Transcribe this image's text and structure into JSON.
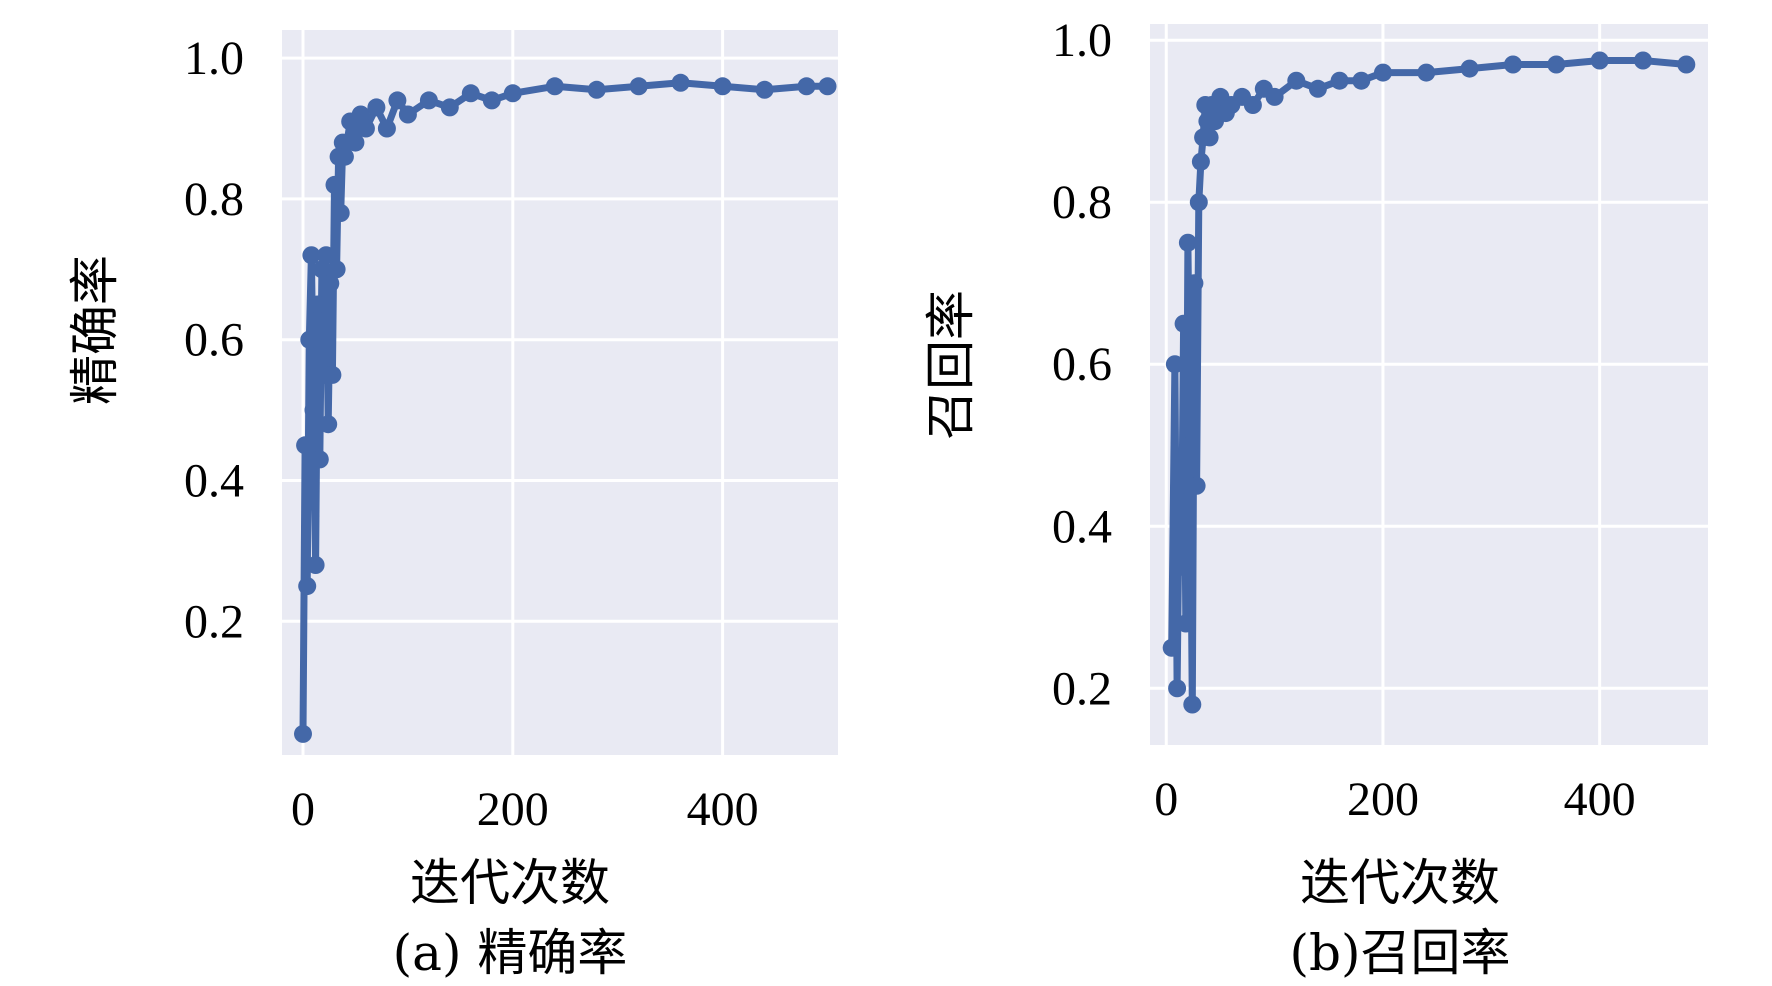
{
  "chart_data": [
    {
      "type": "line",
      "xlabel": "迭代次数",
      "ylabel": "精确率",
      "caption": "(a) 精确率",
      "xlim": [
        -20,
        510
      ],
      "ylim": [
        0.01,
        1.04
      ],
      "xticks": [
        "0",
        "200",
        "400"
      ],
      "yticks": [
        "0.2",
        "0.4",
        "0.6",
        "0.8",
        "1.0"
      ],
      "grid": true,
      "series": [
        {
          "color": "#4468a8",
          "x": [
            0,
            2,
            4,
            6,
            8,
            10,
            12,
            14,
            16,
            18,
            20,
            22,
            24,
            26,
            28,
            30,
            32,
            34,
            36,
            38,
            40,
            45,
            50,
            55,
            60,
            70,
            80,
            90,
            100,
            120,
            140,
            160,
            180,
            200,
            240,
            280,
            320,
            360,
            400,
            440,
            480,
            500
          ],
          "y": [
            0.04,
            0.45,
            0.25,
            0.6,
            0.72,
            0.5,
            0.28,
            0.65,
            0.43,
            0.7,
            0.55,
            0.72,
            0.48,
            0.68,
            0.55,
            0.82,
            0.7,
            0.86,
            0.78,
            0.88,
            0.86,
            0.91,
            0.88,
            0.92,
            0.9,
            0.93,
            0.9,
            0.94,
            0.92,
            0.94,
            0.93,
            0.95,
            0.94,
            0.95,
            0.96,
            0.955,
            0.96,
            0.965,
            0.96,
            0.955,
            0.96,
            0.96
          ]
        }
      ]
    },
    {
      "type": "line",
      "xlabel": "迭代次数",
      "ylabel": "召回率",
      "caption": "(b)召回率",
      "xlim": [
        -15,
        500
      ],
      "ylim": [
        0.13,
        1.02
      ],
      "xticks": [
        "0",
        "200",
        "400"
      ],
      "yticks": [
        "0.2",
        "0.4",
        "0.6",
        "0.8",
        "1.0"
      ],
      "grid": true,
      "series": [
        {
          "color": "#4468a8",
          "x": [
            5,
            8,
            10,
            12,
            14,
            16,
            18,
            20,
            22,
            24,
            26,
            28,
            30,
            32,
            34,
            36,
            38,
            40,
            42,
            45,
            50,
            55,
            60,
            70,
            80,
            90,
            100,
            120,
            140,
            160,
            180,
            200,
            240,
            280,
            320,
            360,
            400,
            440,
            480
          ],
          "y": [
            0.25,
            0.6,
            0.2,
            0.45,
            0.35,
            0.65,
            0.28,
            0.75,
            0.5,
            0.18,
            0.7,
            0.45,
            0.8,
            0.85,
            0.88,
            0.92,
            0.9,
            0.88,
            0.92,
            0.9,
            0.93,
            0.91,
            0.92,
            0.93,
            0.92,
            0.94,
            0.93,
            0.95,
            0.94,
            0.95,
            0.95,
            0.96,
            0.96,
            0.965,
            0.97,
            0.97,
            0.975,
            0.975,
            0.97
          ]
        }
      ]
    }
  ]
}
